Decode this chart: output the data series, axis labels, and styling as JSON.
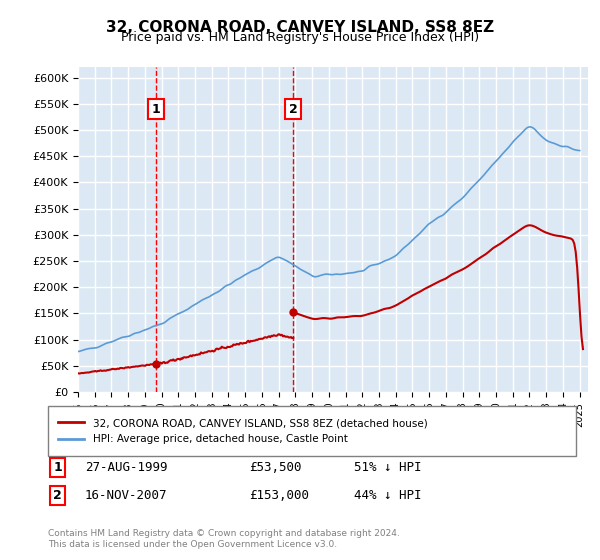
{
  "title": "32, CORONA ROAD, CANVEY ISLAND, SS8 8EZ",
  "subtitle": "Price paid vs. HM Land Registry's House Price Index (HPI)",
  "xlabel": "",
  "ylabel": "",
  "ylim": [
    0,
    620000
  ],
  "yticks": [
    0,
    50000,
    100000,
    150000,
    200000,
    250000,
    300000,
    350000,
    400000,
    450000,
    500000,
    550000,
    600000
  ],
  "bg_color": "#dce9f5",
  "plot_bg": "#dce9f5",
  "grid_color": "#ffffff",
  "hpi_color": "#5b9bd5",
  "price_color": "#c00000",
  "vline_color": "#ff0000",
  "sale1_date": 1999.66,
  "sale1_price": 53500,
  "sale2_date": 2007.88,
  "sale2_price": 153000,
  "legend_label1": "32, CORONA ROAD, CANVEY ISLAND, SS8 8EZ (detached house)",
  "legend_label2": "HPI: Average price, detached house, Castle Point",
  "annotation1": "1",
  "annotation2": "2",
  "ann1_x": 1999.66,
  "ann2_x": 2007.88,
  "table_row1": "1    27-AUG-1999         £53,500         51% ↓ HPI",
  "table_row2": "2    16-NOV-2007         £153,000        44% ↓ HPI",
  "footer": "Contains HM Land Registry data © Crown copyright and database right 2024.\nThis data is licensed under the Open Government Licence v3.0.",
  "xmin": 1995,
  "xmax": 2025.5
}
